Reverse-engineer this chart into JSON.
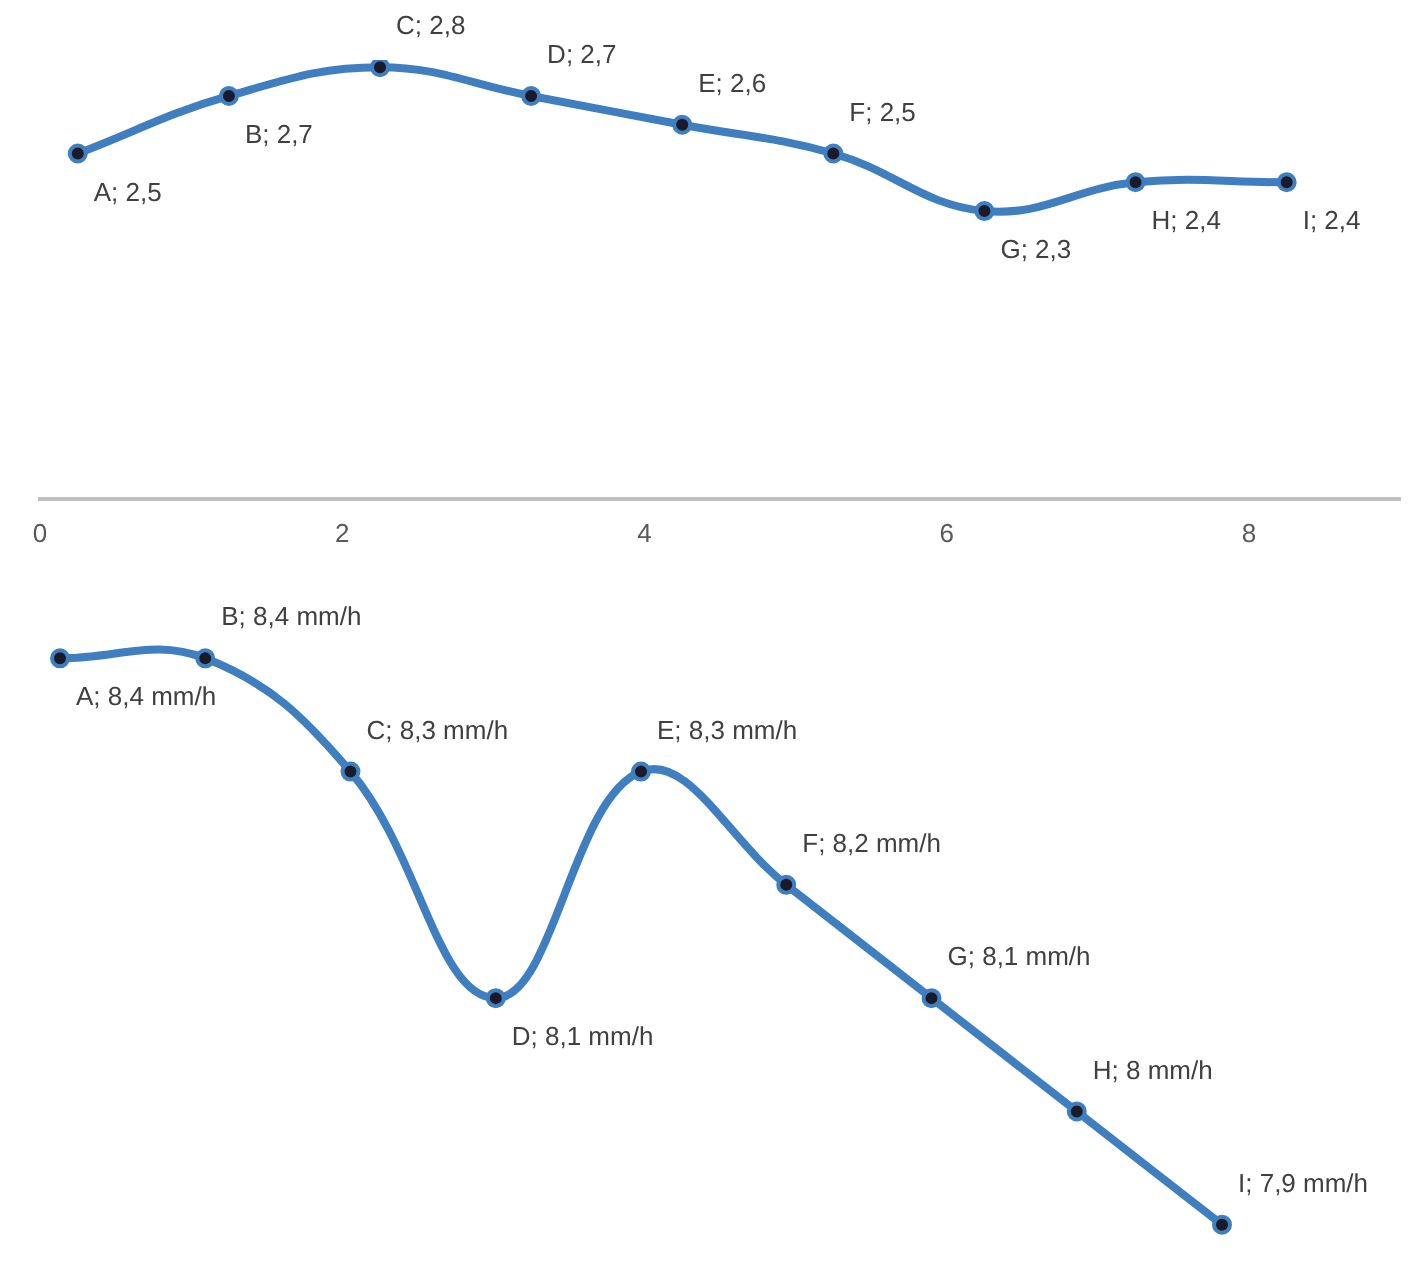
{
  "chart_data": [
    {
      "type": "line",
      "x": [
        0.25,
        1.25,
        2.25,
        3.25,
        4.25,
        5.25,
        6.25,
        7.25,
        8.25
      ],
      "values": [
        2.5,
        2.7,
        2.8,
        2.7,
        2.6,
        2.5,
        2.3,
        2.4,
        2.4
      ],
      "value_labels": [
        "A; 2,5",
        "B; 2,7",
        "C; 2,8",
        "D; 2,7",
        "E; 2,6",
        "F; 2,5",
        "G; 2,3",
        "H; 2,4",
        "I; 2,4"
      ],
      "color": "#3f7fc0",
      "marker": "circle",
      "xlim": [
        0,
        9
      ],
      "xticks": [
        0,
        2,
        4,
        6,
        8
      ],
      "tick_labels": "x"
    },
    {
      "type": "line",
      "categories": [
        null,
        null,
        null,
        null,
        null,
        null,
        null,
        null,
        null
      ],
      "values": [
        8.4,
        8.4,
        8.3,
        8.1,
        8.3,
        8.2,
        8.1,
        8.0,
        7.9
      ],
      "value_labels": [
        "A; 8,4 mm/h",
        "B; 8,4 mm/h",
        "C; 8,3 mm/h",
        "D; 8,1 mm/h",
        "E; 8,3 mm/h",
        "F; 8,2 mm/h",
        "G; 8,1 mm/h",
        "H; 8 mm/h",
        "I; 7,9 mm/h"
      ],
      "color": "#3f7fc0",
      "marker": "circle",
      "tick_labels": false
    }
  ]
}
